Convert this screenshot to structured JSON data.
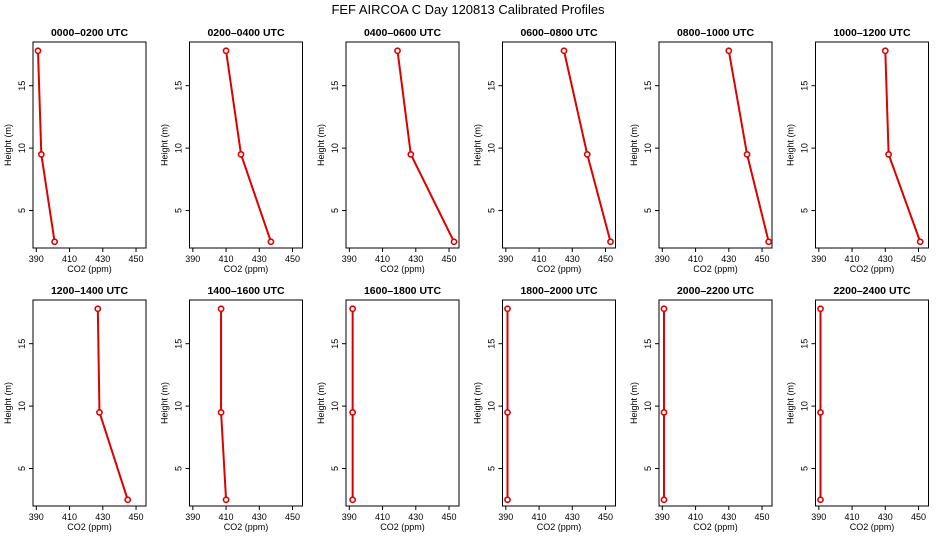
{
  "title": "FEF AIRCOA C  Day 120813  Calibrated Profiles",
  "colors": {
    "profile": "#dd0000",
    "axis": "#000000"
  },
  "chart_data": [
    {
      "type": "line",
      "title": "0000–0200 UTC",
      "xlabel": "CO2 (ppm)",
      "ylabel": "Height (m)",
      "xlim": [
        388,
        456
      ],
      "ylim": [
        2,
        18.5
      ],
      "xticks": [
        390,
        410,
        430,
        450
      ],
      "yticks": [
        5,
        10,
        15
      ],
      "grid": false,
      "series": [
        {
          "x": [
            401,
            393,
            391
          ],
          "y": [
            2.5,
            9.5,
            17.8
          ]
        }
      ]
    },
    {
      "type": "line",
      "title": "0200–0400 UTC",
      "xlabel": "CO2 (ppm)",
      "ylabel": "Height (m)",
      "xlim": [
        388,
        456
      ],
      "ylim": [
        2,
        18.5
      ],
      "xticks": [
        390,
        410,
        430,
        450
      ],
      "yticks": [
        5,
        10,
        15
      ],
      "grid": false,
      "series": [
        {
          "x": [
            437,
            419,
            410
          ],
          "y": [
            2.5,
            9.5,
            17.8
          ]
        }
      ]
    },
    {
      "type": "line",
      "title": "0400–0600 UTC",
      "xlabel": "CO2 (ppm)",
      "ylabel": "Height (m)",
      "xlim": [
        388,
        456
      ],
      "ylim": [
        2,
        18.5
      ],
      "xticks": [
        390,
        410,
        430,
        450
      ],
      "yticks": [
        5,
        10,
        15
      ],
      "grid": false,
      "series": [
        {
          "x": [
            453,
            427,
            419
          ],
          "y": [
            2.5,
            9.5,
            17.8
          ]
        }
      ]
    },
    {
      "type": "line",
      "title": "0600–0800 UTC",
      "xlabel": "CO2 (ppm)",
      "ylabel": "Height (m)",
      "xlim": [
        388,
        456
      ],
      "ylim": [
        2,
        18.5
      ],
      "xticks": [
        390,
        410,
        430,
        450
      ],
      "yticks": [
        5,
        10,
        15
      ],
      "grid": false,
      "series": [
        {
          "x": [
            453,
            439,
            425
          ],
          "y": [
            2.5,
            9.5,
            17.8
          ]
        }
      ]
    },
    {
      "type": "line",
      "title": "0800–1000 UTC",
      "xlabel": "CO2 (ppm)",
      "ylabel": "Height (m)",
      "xlim": [
        388,
        456
      ],
      "ylim": [
        2,
        18.5
      ],
      "xticks": [
        390,
        410,
        430,
        450
      ],
      "yticks": [
        5,
        10,
        15
      ],
      "grid": false,
      "series": [
        {
          "x": [
            454,
            441,
            430
          ],
          "y": [
            2.5,
            9.5,
            17.8
          ]
        }
      ]
    },
    {
      "type": "line",
      "title": "1000–1200 UTC",
      "xlabel": "CO2 (ppm)",
      "ylabel": "Height (m)",
      "xlim": [
        388,
        456
      ],
      "ylim": [
        2,
        18.5
      ],
      "xticks": [
        390,
        410,
        430,
        450
      ],
      "yticks": [
        5,
        10,
        15
      ],
      "grid": false,
      "series": [
        {
          "x": [
            451,
            432,
            430
          ],
          "y": [
            2.5,
            9.5,
            17.8
          ]
        }
      ]
    },
    {
      "type": "line",
      "title": "1200–1400 UTC",
      "xlabel": "CO2 (ppm)",
      "ylabel": "Height (m)",
      "xlim": [
        388,
        456
      ],
      "ylim": [
        2,
        18.5
      ],
      "xticks": [
        390,
        410,
        430,
        450
      ],
      "yticks": [
        5,
        10,
        15
      ],
      "grid": false,
      "series": [
        {
          "x": [
            445,
            428,
            427
          ],
          "y": [
            2.5,
            9.5,
            17.8
          ]
        }
      ]
    },
    {
      "type": "line",
      "title": "1400–1600 UTC",
      "xlabel": "CO2 (ppm)",
      "ylabel": "Height (m)",
      "xlim": [
        388,
        456
      ],
      "ylim": [
        2,
        18.5
      ],
      "xticks": [
        390,
        410,
        430,
        450
      ],
      "yticks": [
        5,
        10,
        15
      ],
      "grid": false,
      "series": [
        {
          "x": [
            410,
            407,
            407
          ],
          "y": [
            2.5,
            9.5,
            17.8
          ]
        }
      ]
    },
    {
      "type": "line",
      "title": "1600–1800 UTC",
      "xlabel": "CO2 (ppm)",
      "ylabel": "Height (m)",
      "xlim": [
        388,
        456
      ],
      "ylim": [
        2,
        18.5
      ],
      "xticks": [
        390,
        410,
        430,
        450
      ],
      "yticks": [
        5,
        10,
        15
      ],
      "grid": false,
      "series": [
        {
          "x": [
            392,
            392,
            392
          ],
          "y": [
            2.5,
            9.5,
            17.8
          ]
        }
      ]
    },
    {
      "type": "line",
      "title": "1800–2000 UTC",
      "xlabel": "CO2 (ppm)",
      "ylabel": "Height (m)",
      "xlim": [
        388,
        456
      ],
      "ylim": [
        2,
        18.5
      ],
      "xticks": [
        390,
        410,
        430,
        450
      ],
      "yticks": [
        5,
        10,
        15
      ],
      "grid": false,
      "series": [
        {
          "x": [
            391,
            391,
            391
          ],
          "y": [
            2.5,
            9.5,
            17.8
          ]
        }
      ]
    },
    {
      "type": "line",
      "title": "2000–2200 UTC",
      "xlabel": "CO2 (ppm)",
      "ylabel": "Height (m)",
      "xlim": [
        388,
        456
      ],
      "ylim": [
        2,
        18.5
      ],
      "xticks": [
        390,
        410,
        430,
        450
      ],
      "yticks": [
        5,
        10,
        15
      ],
      "grid": false,
      "series": [
        {
          "x": [
            391,
            391,
            391
          ],
          "y": [
            2.5,
            9.5,
            17.8
          ]
        }
      ]
    },
    {
      "type": "line",
      "title": "2200–2400 UTC",
      "xlabel": "CO2 (ppm)",
      "ylabel": "Height (m)",
      "xlim": [
        388,
        456
      ],
      "ylim": [
        2,
        18.5
      ],
      "xticks": [
        390,
        410,
        430,
        450
      ],
      "yticks": [
        5,
        10,
        15
      ],
      "grid": false,
      "series": [
        {
          "x": [
            391,
            391,
            391
          ],
          "y": [
            2.5,
            9.5,
            17.8
          ]
        }
      ]
    }
  ]
}
